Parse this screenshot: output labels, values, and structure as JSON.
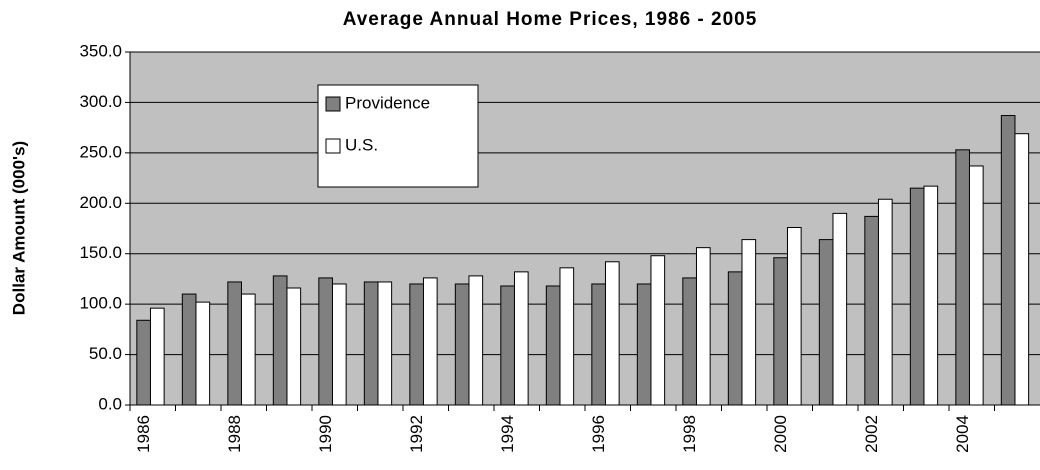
{
  "chart_data": {
    "type": "bar",
    "title": "Average Annual Home Prices, 1986 - 2005",
    "y_label": "Dollar Amount (000's)",
    "categories": [
      "1986",
      null,
      "1988",
      null,
      "1990",
      null,
      "1992",
      null,
      "1994",
      null,
      "1996",
      null,
      "1998",
      null,
      "2000",
      null,
      "2002",
      null,
      "2004",
      null
    ],
    "series": [
      {
        "name": "Providence",
        "color": "#808080",
        "values": [
          84,
          110,
          122,
          128,
          126,
          122,
          120,
          120,
          118,
          118,
          120,
          120,
          126,
          132,
          146,
          164,
          187,
          215,
          253,
          287
        ]
      },
      {
        "name": "U.S.",
        "color": "#ffffff",
        "values": [
          96,
          102,
          110,
          116,
          120,
          122,
          126,
          128,
          132,
          136,
          142,
          148,
          156,
          164,
          176,
          190,
          204,
          217,
          237,
          269
        ]
      }
    ],
    "ylim": [
      0,
      350
    ],
    "yticks": [
      {
        "value": 0,
        "label": "0.0"
      },
      {
        "value": 50,
        "label": "50.0"
      },
      {
        "value": 100,
        "label": "100.0"
      },
      {
        "value": 150,
        "label": "150.0"
      },
      {
        "value": 200,
        "label": "200.0"
      },
      {
        "value": 250,
        "label": "250.0"
      },
      {
        "value": 300,
        "label": "300.0"
      },
      {
        "value": 350,
        "label": "350.0"
      }
    ],
    "grid": true,
    "plot_background": "#c0c0c0"
  }
}
